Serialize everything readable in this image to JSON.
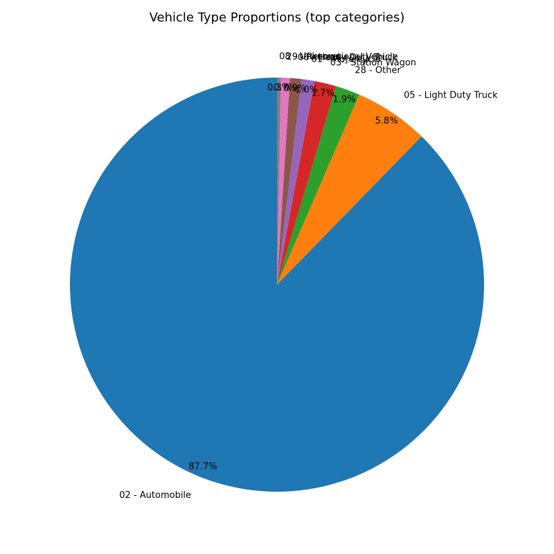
{
  "chart_data": {
    "type": "pie",
    "title": "Vehicle Type Proportions (top categories)",
    "start_angle_deg": 90,
    "direction": "counterclockwise",
    "slices": [
      {
        "label": "02 - Automobile",
        "value": 87.7,
        "pct_label": "87.7%",
        "color": "#1f77b4"
      },
      {
        "label": "05 - Light Duty Truck",
        "value": 5.8,
        "pct_label": "5.8%",
        "color": "#ff7f0e"
      },
      {
        "label": "28 - Other",
        "value": 1.9,
        "pct_label": "1.9%",
        "color": "#2ca02c"
      },
      {
        "label": "03 - Station Wagon",
        "value": 1.7,
        "pct_label": "1.7%",
        "color": "#d62728"
      },
      {
        "label": "01 - Motorcycle",
        "value": 1.0,
        "pct_label": "1.0%",
        "color": "#9467bd"
      },
      {
        "label": "06 - Heavy Duty Truck",
        "value": 0.9,
        "pct_label": "0.9%",
        "color": "#8c564b"
      },
      {
        "label": "29 - Recreational Vehicle",
        "value": 0.7,
        "pct_label": "0.7%",
        "color": "#e377c2"
      },
      {
        "label": "08 - Unknown",
        "value": 0.3,
        "pct_label": "0.3%",
        "color": "#7f7f7f"
      }
    ]
  }
}
